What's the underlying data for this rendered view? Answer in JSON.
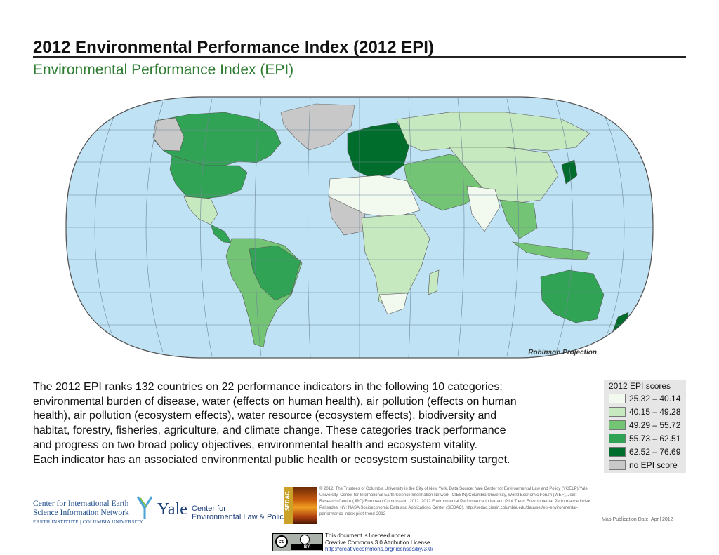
{
  "header": {
    "title": "2012 Environmental Performance Index (2012 EPI)",
    "subtitle": "Environmental Performance Index (EPI)"
  },
  "map": {
    "projection_label": "Robinson Projection",
    "ocean_color": "#bfe3f5",
    "land_no_data_color": "#c8c8c8",
    "score_colors": [
      "#f2faf0",
      "#c7e9c0",
      "#74c476",
      "#31a354",
      "#006d2c",
      "#c8c8c8"
    ]
  },
  "description": {
    "line1": "The 2012 EPI ranks 132 countries on 22 performance indicators in the following 10 categories:",
    "line2": "environmental burden of disease, water (effects on human health), air pollution (effects on human",
    "line3": "health), air pollution (ecosystem effects), water resource (ecosystem effects), biodiversity and",
    "line4": "habitat, forestry, fisheries, agriculture, and climate change. These categories track performance",
    "line5": "and progress on two broad policy objectives, environmental health and ecosystem vitality.",
    "line6": "Each indicator has an associated environmental public health or ecosystem sustainability target."
  },
  "legend": {
    "title": "2012 EPI scores",
    "items": [
      {
        "label": "25.32 – 40.14",
        "color": "#f2faf0"
      },
      {
        "label": "40.15 – 49.28",
        "color": "#c7e9c0"
      },
      {
        "label": "49.29 – 55.72",
        "color": "#74c476"
      },
      {
        "label": "55.73 – 62.51",
        "color": "#31a354"
      },
      {
        "label": "62.52 – 76.69",
        "color": "#006d2c"
      },
      {
        "label": "no EPI score",
        "color": "#c8c8c8"
      }
    ]
  },
  "footer": {
    "ciesin_line1": "Center for International Earth",
    "ciesin_line2": "Science Information Network",
    "ciesin_line3": "EARTH INSTITUTE | COLUMBIA UNIVERSITY",
    "yale_word": "Yale",
    "yale_center_line1": "Center for",
    "yale_center_line2": "Environmental Law & Policy",
    "sedac_label": "SEDAC",
    "credits": "© 2012. The Trustees of Columbia University in the City of New York. Data Source: Yale Center for Environmental Law and Policy (YCELP)/Yale University, Center for International Earth Science Information Network (CIESIN)/Columbia University, World Economic Forum (WEF), Joint Research Centre (JRC)/European Commission. 2012. 2012 Environmental Performance Index and Pilot Trend Environmental Performance Index. Palisades, NY: NASA Socioeconomic Data and Applications Center (SEDAC). http://sedac.ciesin.columbia.edu/data/set/epi-environmental-performance-index-pilot-trend-2012",
    "pub_date": "Map Publication Date: April 2012",
    "cc_label": "cc",
    "by_label": "BY",
    "license_line1": "This document is licensed under a",
    "license_line2": "Creative Commons 3.0 Attribution License",
    "license_url": "http://creativecommons.org/licenses/by/3.0/"
  }
}
